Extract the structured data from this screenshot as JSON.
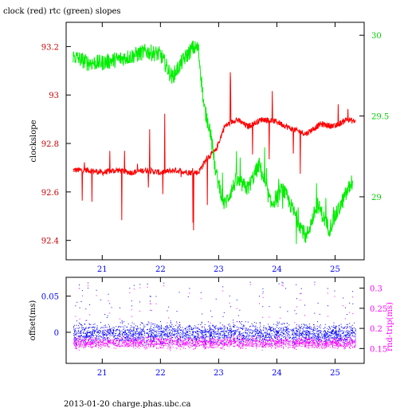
{
  "page": {
    "title": "clock (red) rtc (green) slopes",
    "footer": "2013-01-20 charge.phas.ubc.ca"
  },
  "colors": {
    "clock": "#ff0000",
    "clock_axis_text": "#cc0000",
    "rtc": "#00ee00",
    "offset": "#0000ff",
    "rtt": "#ff00ff",
    "axis": "#000000",
    "background": "#ffffff"
  },
  "chart_data": [
    {
      "type": "line",
      "title": "clock (red) rtc (green) slopes",
      "xlabel": "",
      "ylabel": "clockslope",
      "y2label": "",
      "xlim": [
        20.38,
        25.5
      ],
      "ylim": [
        92.32,
        93.3
      ],
      "y2lim": [
        28.61,
        30.08
      ],
      "x_ticks": [
        21,
        22,
        23,
        24,
        25
      ],
      "y_ticks": [
        92.4,
        92.6,
        92.8,
        93,
        93.2
      ],
      "y_tick_labels": [
        "92.4",
        "92.6",
        "92.8",
        "93",
        "93.2"
      ],
      "y2_ticks": [
        29,
        29.5,
        30
      ],
      "y2_tick_labels": [
        "29",
        "29.5",
        "30"
      ],
      "x_tick_labels": [
        "21",
        "22",
        "23",
        "24",
        "25"
      ],
      "grid": false,
      "series": [
        {
          "axis": "left",
          "color": "#ff0000",
          "x": [
            20.5,
            20.75,
            21.0,
            21.25,
            21.5,
            21.75,
            22.0,
            22.25,
            22.5,
            22.65,
            22.8,
            22.95,
            23.1,
            23.3,
            23.5,
            23.75,
            24.0,
            24.25,
            24.5,
            24.75,
            25.0,
            25.2,
            25.35
          ],
          "y": [
            92.69,
            92.69,
            92.68,
            92.69,
            92.68,
            92.69,
            92.68,
            92.69,
            92.68,
            92.68,
            92.74,
            92.77,
            92.87,
            92.9,
            92.87,
            92.9,
            92.89,
            92.86,
            92.84,
            92.88,
            92.87,
            92.9,
            92.89
          ]
        },
        {
          "axis": "right",
          "color": "#00ee00",
          "x": [
            20.5,
            20.75,
            21.0,
            21.25,
            21.5,
            21.75,
            22.0,
            22.2,
            22.4,
            22.55,
            22.65,
            22.75,
            22.85,
            22.95,
            23.1,
            23.3,
            23.5,
            23.7,
            23.9,
            24.1,
            24.3,
            24.5,
            24.7,
            24.9,
            25.1,
            25.3
          ],
          "y": [
            29.87,
            29.83,
            29.83,
            29.85,
            29.87,
            29.9,
            29.88,
            29.74,
            29.85,
            29.92,
            29.92,
            29.55,
            29.42,
            29.15,
            28.95,
            29.1,
            29.05,
            29.2,
            28.95,
            29.05,
            28.9,
            28.75,
            28.95,
            28.8,
            28.95,
            29.1
          ]
        }
      ]
    },
    {
      "type": "scatter",
      "xlabel": "",
      "ylabel": "offset(ms)",
      "y2label": "rnd-trip(ms)",
      "xlim": [
        20.38,
        25.5
      ],
      "ylim": [
        -0.043,
        0.076
      ],
      "y2lim": [
        0.113,
        0.327
      ],
      "x_ticks": [
        21,
        22,
        23,
        24,
        25
      ],
      "x_tick_labels": [
        "21",
        "22",
        "23",
        "24",
        "25"
      ],
      "y_ticks": [
        0,
        0.05
      ],
      "y_tick_labels": [
        "0",
        "0.05"
      ],
      "y2_ticks": [
        0.15,
        0.2,
        0.25,
        0.3
      ],
      "y2_tick_labels": [
        "0.15",
        "0.2",
        "0.25",
        "0.3"
      ],
      "grid": false,
      "series": [
        {
          "axis": "left",
          "color": "#0000ff",
          "x_range": [
            20.5,
            25.35
          ],
          "y_band": [
            -0.022,
            0.019
          ],
          "y_center": 0.0
        },
        {
          "axis": "right",
          "color": "#ff00ff",
          "x_range": [
            20.5,
            25.35
          ],
          "y_band": [
            0.145,
            0.185
          ],
          "y_center": 0.165
        }
      ]
    }
  ]
}
